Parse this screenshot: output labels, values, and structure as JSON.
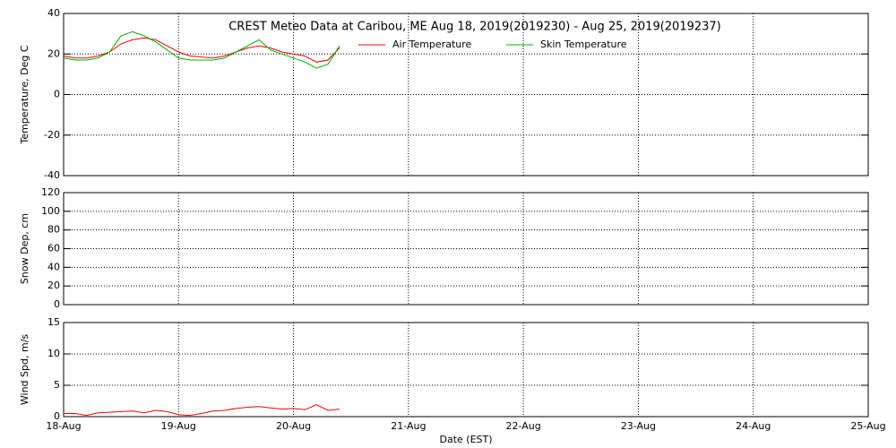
{
  "chart_data": [
    {
      "type": "line",
      "title": "CREST Meteo Data at Caribou, ME   Aug 18, 2019(2019230) - Aug 25, 2019(2019237)",
      "y_label": "Temperature, Deg C",
      "x": [
        0,
        0.1,
        0.2,
        0.3,
        0.4,
        0.5,
        0.6,
        0.7,
        0.8,
        0.9,
        1.0,
        1.1,
        1.2,
        1.3,
        1.4,
        1.5,
        1.6,
        1.7,
        1.8,
        1.9,
        2.0,
        2.1,
        2.2,
        2.3,
        2.4
      ],
      "series": [
        {
          "name": "Air Temperature",
          "color": "#ff0000",
          "values": [
            19,
            18,
            18,
            19,
            21,
            25,
            27,
            28,
            27,
            24,
            21,
            19,
            18.5,
            18,
            19,
            21,
            23,
            24,
            23,
            21,
            20,
            19,
            16,
            17,
            23
          ]
        },
        {
          "name": "Skin Temperature",
          "color": "#00b000",
          "values": [
            18,
            17,
            17,
            18,
            21,
            29,
            31,
            29,
            26,
            22,
            18,
            17,
            17,
            17,
            18,
            21,
            24,
            27,
            22,
            20,
            18,
            16,
            13,
            15,
            24
          ]
        }
      ],
      "xlim": [
        0,
        7
      ],
      "xticks": [
        0,
        1,
        2,
        3,
        4,
        5,
        6,
        7
      ],
      "ylim": [
        -40,
        40
      ],
      "yticks": [
        -40,
        -20,
        0,
        20,
        40
      ],
      "grid": true
    },
    {
      "type": "line",
      "y_label": "Snow Dep, cm",
      "xlim": [
        0,
        7
      ],
      "xticks": [
        0,
        1,
        2,
        3,
        4,
        5,
        6,
        7
      ],
      "ylim": [
        0,
        120
      ],
      "yticks": [
        0,
        20,
        40,
        60,
        80,
        100,
        120
      ],
      "grid": true
    },
    {
      "type": "line",
      "y_label": "Wind Spd, m/s",
      "x_label": "Date (EST)",
      "x": [
        0,
        0.1,
        0.2,
        0.3,
        0.4,
        0.5,
        0.6,
        0.7,
        0.8,
        0.9,
        1.0,
        1.1,
        1.2,
        1.3,
        1.4,
        1.5,
        1.6,
        1.7,
        1.8,
        1.9,
        2.0,
        2.1,
        2.2,
        2.3,
        2.4
      ],
      "series": [
        {
          "name": "Wind Speed",
          "color": "#ff0000",
          "values": [
            0.5,
            0.5,
            0.2,
            0.6,
            0.7,
            0.8,
            0.9,
            0.6,
            1.0,
            0.8,
            0.3,
            0.2,
            0.5,
            0.9,
            1.0,
            1.3,
            1.5,
            1.6,
            1.4,
            1.2,
            1.3,
            1.1,
            1.9,
            1.0,
            1.2
          ]
        }
      ],
      "xlim": [
        0,
        7
      ],
      "xticks": [
        {
          "value": 0,
          "label": "18-Aug"
        },
        {
          "value": 1,
          "label": "19-Aug"
        },
        {
          "value": 2,
          "label": "20-Aug"
        },
        {
          "value": 3,
          "label": "21-Aug"
        },
        {
          "value": 4,
          "label": "22-Aug"
        },
        {
          "value": 5,
          "label": "23-Aug"
        },
        {
          "value": 6,
          "label": "24-Aug"
        },
        {
          "value": 7,
          "label": "25-Aug"
        }
      ],
      "ylim": [
        0,
        15
      ],
      "yticks": [
        0,
        5,
        10,
        15
      ],
      "grid": true
    }
  ]
}
